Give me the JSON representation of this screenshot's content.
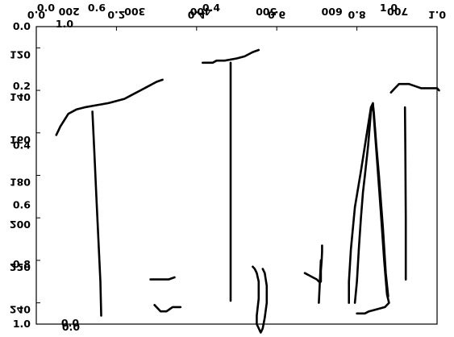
{
  "chart_data": {
    "type": "line",
    "title": "",
    "note": "Overlaid layers of a well-log style plot; tick labels as printed (several axes overlap).",
    "left_axis": {
      "depth_ticks": [
        {
          "label": "120",
          "value": 120
        },
        {
          "label": "140",
          "value": 140
        },
        {
          "label": "160",
          "value": 160
        },
        {
          "label": "180",
          "value": 180
        },
        {
          "label": "200",
          "value": 200
        },
        {
          "label": "220",
          "value": 220
        },
        {
          "label": "240",
          "value": 240
        }
      ],
      "fraction_ticks": [
        {
          "label": "0.0",
          "value": 0.0
        },
        {
          "label": "0.2",
          "value": 0.2
        },
        {
          "label": "0.4",
          "value": 0.4
        },
        {
          "label": "0.6",
          "value": 0.6
        },
        {
          "label": "0.8",
          "value": 0.8
        },
        {
          "label": "1.0",
          "value": 1.0
        }
      ]
    },
    "top_axis": {
      "fraction_ticks": [
        {
          "label": "0.0",
          "value": 0.0
        },
        {
          "label": "0.2",
          "value": 0.2
        },
        {
          "label": "0.4",
          "value": 0.4
        },
        {
          "label": "0.6",
          "value": 0.6
        },
        {
          "label": "0.8",
          "value": 0.8
        },
        {
          "label": "1.0",
          "value": 1.0
        }
      ],
      "count_ticks": [
        {
          "label": "200",
          "value": 200
        },
        {
          "label": "300",
          "value": 300
        },
        {
          "label": "400",
          "value": 400
        },
        {
          "label": "500",
          "value": 500
        },
        {
          "label": "600",
          "value": 600
        },
        {
          "label": "700",
          "value": 700
        }
      ],
      "extra_labels": [
        "1.0",
        "0.0",
        "0.0",
        "1.0",
        "0.4",
        "0.6"
      ]
    },
    "bottom_labels": [
      "0.0"
    ],
    "xlim": [
      0,
      1
    ],
    "depth_lim": [
      110,
      250
    ],
    "series": [
      {
        "points": [
          [
            0.05,
            161
          ],
          [
            0.06,
            157
          ],
          [
            0.07,
            154
          ],
          [
            0.08,
            151
          ],
          [
            0.1,
            149
          ],
          [
            0.12,
            148
          ],
          [
            0.15,
            147
          ],
          [
            0.18,
            146
          ],
          [
            0.2,
            145
          ],
          [
            0.22,
            144
          ],
          [
            0.24,
            142
          ],
          [
            0.26,
            140
          ],
          [
            0.28,
            138
          ],
          [
            0.3,
            136
          ],
          [
            0.315,
            135
          ]
        ]
      },
      {
        "points": [
          [
            0.14,
            150
          ],
          [
            0.145,
            170
          ],
          [
            0.15,
            190
          ],
          [
            0.155,
            210
          ],
          [
            0.16,
            230
          ],
          [
            0.162,
            246
          ]
        ]
      },
      {
        "points": [
          [
            0.285,
            229
          ],
          [
            0.33,
            229
          ],
          [
            0.345,
            228
          ]
        ]
      },
      {
        "points": [
          [
            0.295,
            241
          ],
          [
            0.31,
            244
          ],
          [
            0.325,
            244
          ],
          [
            0.34,
            242
          ],
          [
            0.36,
            242
          ]
        ]
      },
      {
        "points": [
          [
            0.415,
            127
          ],
          [
            0.44,
            127
          ],
          [
            0.45,
            126
          ],
          [
            0.47,
            126
          ],
          [
            0.5,
            125
          ],
          [
            0.52,
            124
          ],
          [
            0.54,
            122
          ],
          [
            0.555,
            121
          ]
        ]
      },
      {
        "points": [
          [
            0.485,
            127
          ],
          [
            0.485,
            160
          ],
          [
            0.485,
            200
          ],
          [
            0.485,
            239
          ]
        ]
      },
      {
        "points": [
          [
            0.54,
            223
          ],
          [
            0.545,
            224
          ],
          [
            0.55,
            226
          ],
          [
            0.555,
            230
          ],
          [
            0.555,
            238
          ],
          [
            0.55,
            246
          ],
          [
            0.55,
            250
          ],
          [
            0.56,
            254
          ],
          [
            0.565,
            252
          ],
          [
            0.57,
            247
          ],
          [
            0.575,
            240
          ],
          [
            0.575,
            232
          ],
          [
            0.57,
            226
          ],
          [
            0.565,
            224
          ]
        ]
      },
      {
        "points": [
          [
            0.67,
            226
          ],
          [
            0.68,
            227
          ],
          [
            0.69,
            228
          ],
          [
            0.7,
            229
          ],
          [
            0.705,
            230
          ],
          [
            0.71,
            230
          ],
          [
            0.71,
            225
          ],
          [
            0.712,
            220
          ],
          [
            0.713,
            216
          ],
          [
            0.713,
            213
          ]
        ]
      },
      {
        "points": [
          [
            0.705,
            240
          ],
          [
            0.707,
            232
          ],
          [
            0.71,
            220
          ]
        ]
      },
      {
        "points": [
          [
            0.795,
            240
          ],
          [
            0.8,
            230
          ],
          [
            0.805,
            214
          ],
          [
            0.81,
            200
          ],
          [
            0.815,
            188
          ],
          [
            0.82,
            180
          ],
          [
            0.828,
            166
          ],
          [
            0.835,
            150
          ],
          [
            0.84,
            147
          ],
          [
            0.842,
            150
          ],
          [
            0.848,
            165
          ],
          [
            0.855,
            180
          ],
          [
            0.865,
            205
          ],
          [
            0.872,
            226
          ],
          [
            0.878,
            237
          ]
        ]
      },
      {
        "points": [
          [
            0.78,
            240
          ],
          [
            0.78,
            230
          ],
          [
            0.785,
            215
          ],
          [
            0.795,
            195
          ],
          [
            0.81,
            178
          ],
          [
            0.825,
            160
          ],
          [
            0.835,
            148
          ],
          [
            0.84,
            146
          ],
          [
            0.842,
            152
          ],
          [
            0.85,
            172
          ],
          [
            0.86,
            198
          ],
          [
            0.868,
            220
          ],
          [
            0.875,
            236
          ],
          [
            0.88,
            240
          ],
          [
            0.87,
            242
          ],
          [
            0.85,
            243
          ],
          [
            0.83,
            244
          ],
          [
            0.82,
            245
          ],
          [
            0.8,
            245
          ]
        ]
      },
      {
        "points": [
          [
            0.885,
            141
          ],
          [
            0.895,
            139
          ],
          [
            0.905,
            137
          ],
          [
            0.93,
            137
          ],
          [
            0.945,
            138
          ],
          [
            0.96,
            139
          ],
          [
            1.0,
            139
          ],
          [
            1.005,
            140
          ]
        ]
      },
      {
        "points": [
          [
            0.92,
            148
          ],
          [
            0.921,
            170
          ],
          [
            0.922,
            200
          ],
          [
            0.922,
            229
          ]
        ]
      }
    ],
    "grid": false,
    "legend": "none"
  }
}
